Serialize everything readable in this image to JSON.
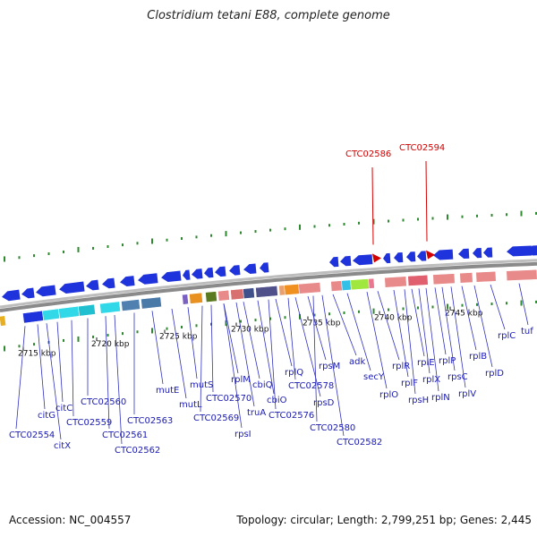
{
  "title": "Clostridium tetani E88, complete genome",
  "footer": {
    "accession": "Accession: NC_004557",
    "summary": "Topology: circular; Length: 2,799,251 bp; Genes: 2,445"
  },
  "colors": {
    "backbone": "#8a8a8a",
    "forward_gene": "#1f33dc",
    "label": "#1a1ab5",
    "tick": "#2e8a2e",
    "callout": "#d40000",
    "ribosomal": "#e88a8a",
    "cyan": "#30d8e8",
    "steel": "#5080b0"
  },
  "ruler_labels": [
    "2715 kbp",
    "2720 kbp",
    "2725 kbp",
    "2730 kbp",
    "2735 kbp",
    "2740 kbp",
    "2745 kbp"
  ],
  "callouts": [
    "CTC02586",
    "CTC02594"
  ],
  "genes": [
    "CTC02554",
    "citG",
    "citX",
    "citC",
    "CTC02559",
    "CTC02560",
    "CTC02561",
    "CTC02562",
    "CTC02563",
    "mutE",
    "mutL",
    "mutS",
    "CTC02569",
    "CTC02570",
    "rplM",
    "rpsI",
    "truA",
    "cbiQ",
    "cbiO",
    "CTC02576",
    "rplQ",
    "CTC02578",
    "rpsD",
    "rpsM",
    "CTC02580",
    "CTC02582",
    "adk",
    "secY",
    "rplO",
    "rplR",
    "rplF",
    "rpsH",
    "rplE",
    "rplX",
    "rplN",
    "rplP",
    "rpsC",
    "rplV",
    "rplB",
    "rplD",
    "rplC",
    "tuf"
  ]
}
